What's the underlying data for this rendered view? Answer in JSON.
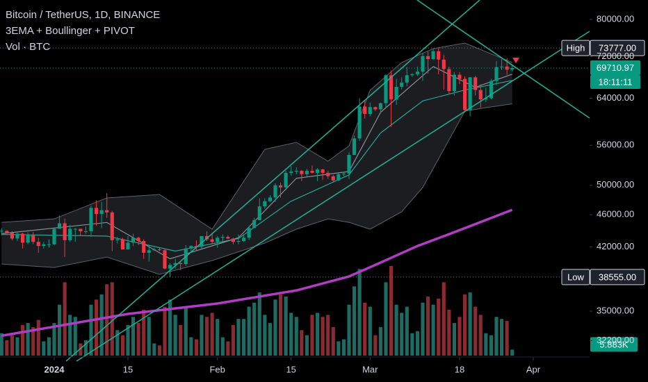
{
  "chart_data": {
    "type": "candlestick",
    "title": "Bitcoin / TetherUS, 1D, BINANCE",
    "subtitle": "3EMA + Boullinger + PIVOT",
    "volume_title": "Vol · BTC",
    "log_scale": true,
    "ylim": [
      30860,
      84530
    ],
    "yticks": [
      {
        "value": 80000,
        "label": "80000.00"
      },
      {
        "value": 72000,
        "label": "72000.00"
      },
      {
        "value": 64000,
        "label": "64000.00"
      },
      {
        "value": 56000,
        "label": "56000.00"
      },
      {
        "value": 50000,
        "label": "50000.00"
      },
      {
        "value": 46000,
        "label": "46000.00"
      },
      {
        "value": 42000,
        "label": "42000.00"
      },
      {
        "value": 35000,
        "label": "35000.00"
      },
      {
        "value": 32200,
        "label": "32200.00"
      }
    ],
    "xlim": [
      -0.3,
      111.7
    ],
    "xticks": [
      {
        "value": 10,
        "label": "2024"
      },
      {
        "value": 24,
        "label": "15"
      },
      {
        "value": 41,
        "label": "Feb"
      },
      {
        "value": 55,
        "label": "15"
      },
      {
        "value": 70,
        "label": "Mar"
      },
      {
        "value": 87,
        "label": "18"
      },
      {
        "value": 101,
        "label": "Apr"
      }
    ],
    "up_color": "#089981",
    "down_color": "#f23645",
    "volume_up_color": "#1d6b63",
    "volume_down_color": "#8c2a32",
    "open": [
      43900,
      43950,
      43700,
      43000,
      43600,
      42500,
      43400,
      42600,
      42100,
      42300,
      42300,
      44200,
      44900,
      42800,
      44200,
      44200,
      43900,
      43900,
      46900,
      46100,
      46600,
      46300,
      42800,
      42900,
      41700,
      42500,
      43100,
      42700,
      41300,
      41600,
      41700,
      41600,
      39500,
      39900,
      40100,
      40000,
      41800,
      42100,
      42000,
      43300,
      42900,
      42600,
      43100,
      43200,
      43000,
      42600,
      42700,
      43100,
      44300,
      45300,
      47100,
      47800,
      48300,
      50000,
      49700,
      51800,
      52000,
      52100,
      51600,
      52100,
      51800,
      52300,
      51800,
      51300,
      50700,
      51600,
      51700,
      54500,
      57100,
      62500,
      61200,
      62400,
      62000,
      63100,
      68300,
      63800,
      66100,
      66900,
      68300,
      68500,
      69000,
      72100,
      71500,
      73100,
      71400,
      69500,
      65300,
      68400,
      67600,
      61900,
      67900,
      65500,
      63800,
      64000,
      67200,
      69900,
      70000,
      69400
    ],
    "high": [
      44300,
      44000,
      43900,
      43700,
      43700,
      43800,
      43800,
      43100,
      42600,
      42900,
      44200,
      45900,
      45500,
      44700,
      44300,
      44200,
      44500,
      47200,
      47900,
      47700,
      48900,
      46500,
      43200,
      43100,
      43300,
      43600,
      43200,
      42900,
      42200,
      41900,
      41900,
      41700,
      40100,
      40600,
      40300,
      42200,
      42200,
      42800,
      43300,
      43900,
      43700,
      43300,
      43500,
      43400,
      43100,
      43500,
      43400,
      44500,
      45600,
      48200,
      48200,
      48600,
      50300,
      50400,
      52100,
      52800,
      52600,
      52200,
      52400,
      52900,
      52500,
      52400,
      52100,
      51500,
      51700,
      51900,
      54900,
      57600,
      64000,
      63700,
      63200,
      62500,
      63200,
      68500,
      69200,
      67600,
      67900,
      69900,
      68700,
      70000,
      72800,
      73000,
      73650,
      73777,
      72400,
      70000,
      68900,
      68900,
      68100,
      68000,
      68200,
      66600,
      65900,
      67600,
      71100,
      71500,
      71700,
      70400
    ],
    "low": [
      43400,
      43600,
      42800,
      42700,
      41800,
      42300,
      42300,
      41300,
      41800,
      41900,
      42200,
      44200,
      40800,
      42600,
      42600,
      43400,
      43600,
      43200,
      44600,
      44300,
      45600,
      41500,
      42400,
      41700,
      41700,
      42100,
      42200,
      40600,
      40300,
      41500,
      41500,
      39400,
      38555,
      39500,
      39300,
      39800,
      41400,
      41600,
      41800,
      42700,
      42300,
      41900,
      42600,
      42900,
      42300,
      42300,
      42600,
      42800,
      44300,
      45300,
      46800,
      47700,
      47700,
      48300,
      49300,
      51400,
      51600,
      50600,
      51200,
      51700,
      50600,
      50800,
      50900,
      50500,
      50600,
      51300,
      50900,
      54500,
      56700,
      60400,
      60800,
      61700,
      61300,
      62300,
      59000,
      62800,
      65600,
      66200,
      68000,
      68200,
      67200,
      68600,
      71300,
      68500,
      65600,
      64800,
      64500,
      66600,
      61500,
      60800,
      64500,
      62300,
      63300,
      63800,
      66400,
      69300,
      68400,
      69000
    ],
    "close": [
      43950,
      43700,
      43000,
      43600,
      42500,
      43400,
      42600,
      42100,
      42300,
      42300,
      44200,
      44900,
      42800,
      44200,
      44200,
      43900,
      43900,
      46900,
      46100,
      46600,
      46300,
      42800,
      42900,
      41700,
      42500,
      43100,
      42700,
      41300,
      41600,
      41700,
      41600,
      39500,
      39900,
      40100,
      40000,
      41800,
      42100,
      42000,
      43300,
      42900,
      42600,
      43100,
      43200,
      43000,
      42600,
      42700,
      43100,
      44300,
      45300,
      47100,
      47800,
      48300,
      50000,
      49700,
      51800,
      52000,
      52100,
      51600,
      52100,
      51800,
      52300,
      51800,
      51300,
      50700,
      51600,
      51700,
      54500,
      57100,
      62500,
      61200,
      62400,
      62000,
      63100,
      68300,
      63800,
      66100,
      66900,
      68300,
      68500,
      69000,
      72100,
      71500,
      73100,
      71400,
      69500,
      65300,
      68400,
      67600,
      61900,
      67900,
      65500,
      63800,
      64000,
      67200,
      69900,
      70000,
      69400,
      69710.97
    ],
    "volume": [
      22000,
      15000,
      20000,
      18000,
      30000,
      32000,
      28000,
      35000,
      14000,
      18000,
      32000,
      50000,
      72000,
      40000,
      38000,
      12000,
      15000,
      50000,
      55000,
      60000,
      70000,
      72000,
      25000,
      20000,
      30000,
      38000,
      32000,
      45000,
      38000,
      12000,
      10000,
      48000,
      55000,
      40000,
      30000,
      48000,
      18000,
      16000,
      40000,
      38000,
      42000,
      36000,
      18000,
      14000,
      30000,
      36000,
      36000,
      48000,
      52000,
      62000,
      40000,
      32000,
      55000,
      60000,
      58000,
      42000,
      38000,
      25000,
      20000,
      40000,
      42000,
      38000,
      40000,
      28000,
      14000,
      16000,
      50000,
      68000,
      85000,
      52000,
      48000,
      20000,
      28000,
      72000,
      88000,
      50000,
      42000,
      48000,
      22000,
      24000,
      52000,
      58000,
      50000,
      56000,
      72000,
      45000,
      32000,
      38000,
      60000,
      62000,
      48000,
      40000,
      22000,
      20000,
      38000,
      36000,
      34000,
      5883
    ],
    "y2lim": [
      0,
      90000
    ],
    "last_volume_label": "5.883K",
    "countdown": "18:11:11",
    "high_marker": {
      "text": "High",
      "value": 73777,
      "label": "73777.00"
    },
    "low_marker": {
      "text": "Low",
      "value": 38555,
      "label": "38555.00"
    },
    "lines": [
      {
        "color": "#b23cc6",
        "width": 3.5,
        "x": [
          0,
          24,
          41,
          56,
          66,
          70,
          79,
          86,
          97
        ],
        "values": [
          32650,
          34730,
          35770,
          37120,
          38620,
          39640,
          42100,
          43780,
          46640
        ]
      },
      {
        "color": "#26a69a",
        "width": 1.2,
        "x": [
          0,
          20,
          33,
          45,
          55,
          66,
          72,
          80,
          88,
          97
        ],
        "values": [
          43500,
          43300,
          41500,
          43000,
          47800,
          51500,
          58000,
          63500,
          65500,
          67300
        ]
      },
      {
        "color": "#8a8f99",
        "width": 1.2,
        "x": [
          0,
          20,
          32,
          45,
          56,
          66,
          72,
          82,
          90,
          97
        ],
        "values": [
          43600,
          45000,
          40600,
          43100,
          51000,
          52000,
          61500,
          70000,
          66000,
          68500
        ]
      }
    ],
    "band": {
      "color": "#5d606b",
      "upper": {
        "x": [
          0,
          10,
          20,
          30,
          40,
          50,
          56,
          62,
          66,
          70,
          76,
          82,
          88,
          97
        ],
        "values": [
          45020,
          45460,
          48240,
          48720,
          44150,
          55360,
          56480,
          53540,
          55910,
          65450,
          70820,
          73650,
          74820,
          70820
        ]
      },
      "lower": {
        "x": [
          0,
          10,
          20,
          30,
          40,
          50,
          56,
          62,
          66,
          70,
          76,
          80,
          84,
          88,
          92,
          97
        ],
        "values": [
          40000,
          39610,
          40800,
          38850,
          40400,
          42450,
          44150,
          45460,
          45020,
          44150,
          46380,
          49700,
          55360,
          61690,
          62300,
          62990
        ]
      }
    }
  }
}
